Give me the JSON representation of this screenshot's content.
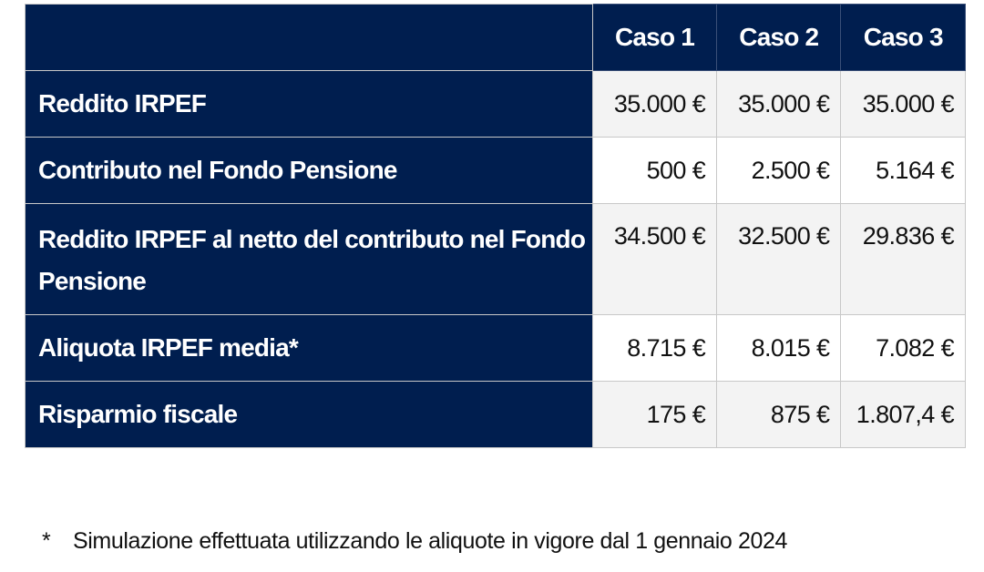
{
  "table": {
    "headers": [
      "",
      "Caso 1",
      "Caso 2",
      "Caso 3"
    ],
    "rows": [
      {
        "label": "Reddito IRPEF",
        "values": [
          "35.000 €",
          "35.000 €",
          "35.000 €"
        ]
      },
      {
        "label": "Contributo nel Fondo Pensione",
        "values": [
          "500 €",
          "2.500 €",
          "5.164 €"
        ]
      },
      {
        "label": "Reddito IRPEF al netto del contributo nel Fondo Pensione",
        "values": [
          "34.500 €",
          "32.500 €",
          "29.836 €"
        ]
      },
      {
        "label": "Aliquota IRPEF media*",
        "values": [
          "8.715 €",
          "8.015 €",
          "7.082 €"
        ]
      },
      {
        "label": "Risparmio fiscale",
        "values": [
          "175 €",
          "875 €",
          "1.807,4 €"
        ]
      }
    ]
  },
  "footnote": {
    "marker": "*",
    "text": "Simulazione effettuata utilizzando le aliquote in vigore dal 1 gennaio 2024"
  },
  "colors": {
    "header_bg": "#001e4f",
    "row_alt": "#f3f3f3"
  }
}
